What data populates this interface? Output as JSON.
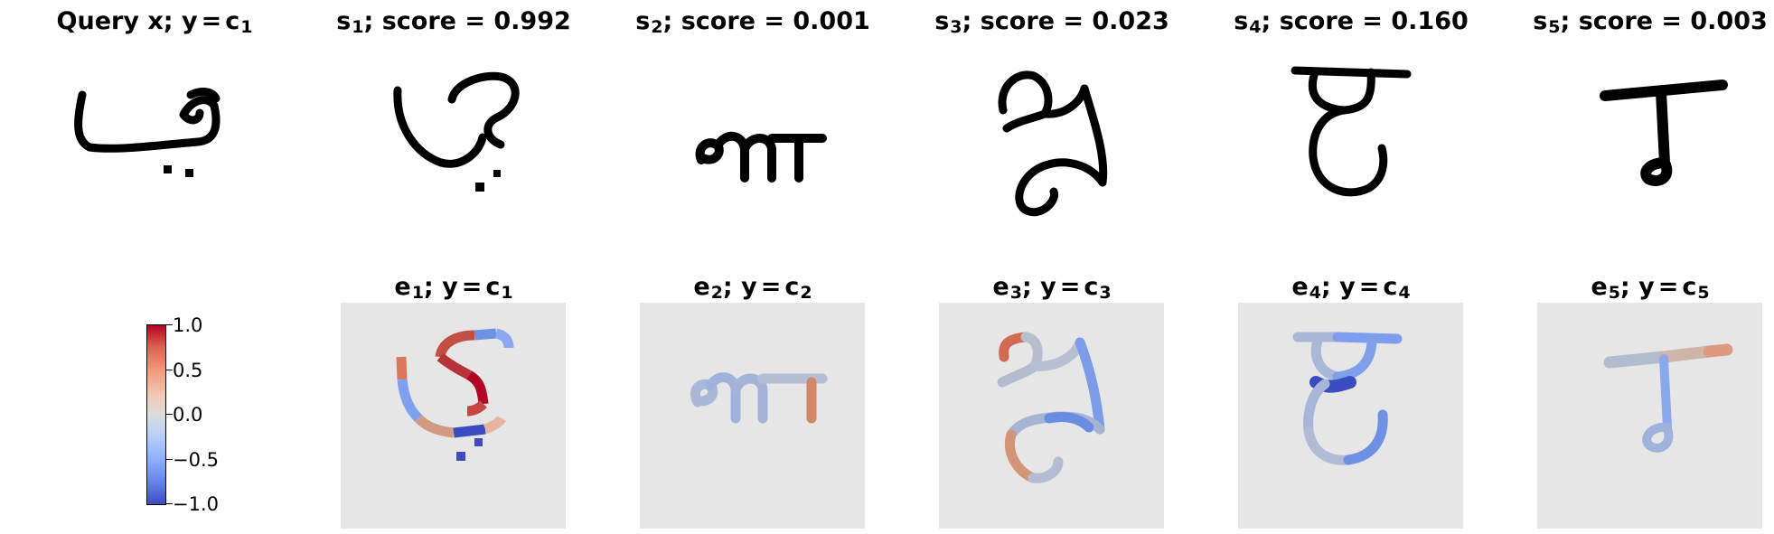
{
  "top_row": [
    {
      "label": "Query x",
      "sep": ";",
      "var": "y",
      "eq": "=",
      "c": "c",
      "c_sub": "1"
    },
    {
      "label": "s",
      "sub": "1",
      "suffix": "; score = 0.992"
    },
    {
      "label": "s",
      "sub": "2",
      "suffix": "; score = 0.001"
    },
    {
      "label": "s",
      "sub": "3",
      "suffix": "; score = 0.023"
    },
    {
      "label": "s",
      "sub": "4",
      "suffix": "; score = 0.160"
    },
    {
      "label": "s",
      "sub": "5",
      "suffix": "; score = 0.003"
    }
  ],
  "bottom_row": [
    {
      "label": "e",
      "sub": "1",
      "sep": ";",
      "var": "y",
      "eq": "=",
      "c": "c",
      "c_sub": "1"
    },
    {
      "label": "e",
      "sub": "2",
      "sep": ";",
      "var": "y",
      "eq": "=",
      "c": "c",
      "c_sub": "2"
    },
    {
      "label": "e",
      "sub": "3",
      "sep": ";",
      "var": "y",
      "eq": "=",
      "c": "c",
      "c_sub": "3"
    },
    {
      "label": "e",
      "sub": "4",
      "sep": ";",
      "var": "y",
      "eq": "=",
      "c": "c",
      "c_sub": "4"
    },
    {
      "label": "e",
      "sub": "5",
      "sep": ";",
      "var": "y",
      "eq": "=",
      "c": "c",
      "c_sub": "5"
    }
  ],
  "colorbar": {
    "ticks": [
      "1.0",
      "0.5",
      "0.0",
      "−0.5",
      "−1.0"
    ],
    "colormap": [
      "#3b4cc0",
      "#dddcdc",
      "#b40426"
    ]
  },
  "colors": {
    "panel_bg": "#e6e6e6",
    "ink": "#000000"
  }
}
